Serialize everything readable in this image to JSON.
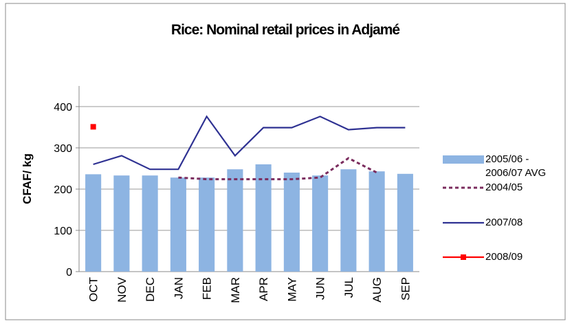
{
  "chart_data": {
    "type": "bar",
    "title": "Rice: Nominal retail prices in Adjamé",
    "y_label": "CFAF/ kg",
    "categories": [
      "OCT",
      "NOV",
      "DEC",
      "JAN",
      "FEB",
      "MAR",
      "APR",
      "MAY",
      "JUN",
      "JUL",
      "AUG",
      "SEP"
    ],
    "ylim": [
      0,
      450
    ],
    "yticks": [
      0,
      100,
      200,
      300,
      400
    ],
    "grid": true,
    "series": [
      {
        "name": "2005/06 - 2006/07 AVG",
        "kind": "bar",
        "color": "#8db4e2",
        "values": [
          236,
          233,
          233,
          228,
          228,
          248,
          260,
          240,
          233,
          248,
          243,
          237
        ]
      },
      {
        "name": "2004/05",
        "kind": "line",
        "dash": true,
        "color": "#7b2c5e",
        "values": [
          null,
          null,
          null,
          228,
          224,
          224,
          224,
          224,
          228,
          275,
          240,
          null
        ]
      },
      {
        "name": "2007/08",
        "kind": "line",
        "color": "#2e3192",
        "values": [
          260,
          281,
          248,
          248,
          376,
          281,
          349,
          349,
          376,
          344,
          349,
          349
        ]
      },
      {
        "name": "2008/09",
        "kind": "line",
        "marker": "square",
        "color": "#ff0000",
        "values": [
          351,
          null,
          null,
          null,
          null,
          null,
          null,
          null,
          null,
          null,
          null,
          null
        ]
      }
    ]
  }
}
